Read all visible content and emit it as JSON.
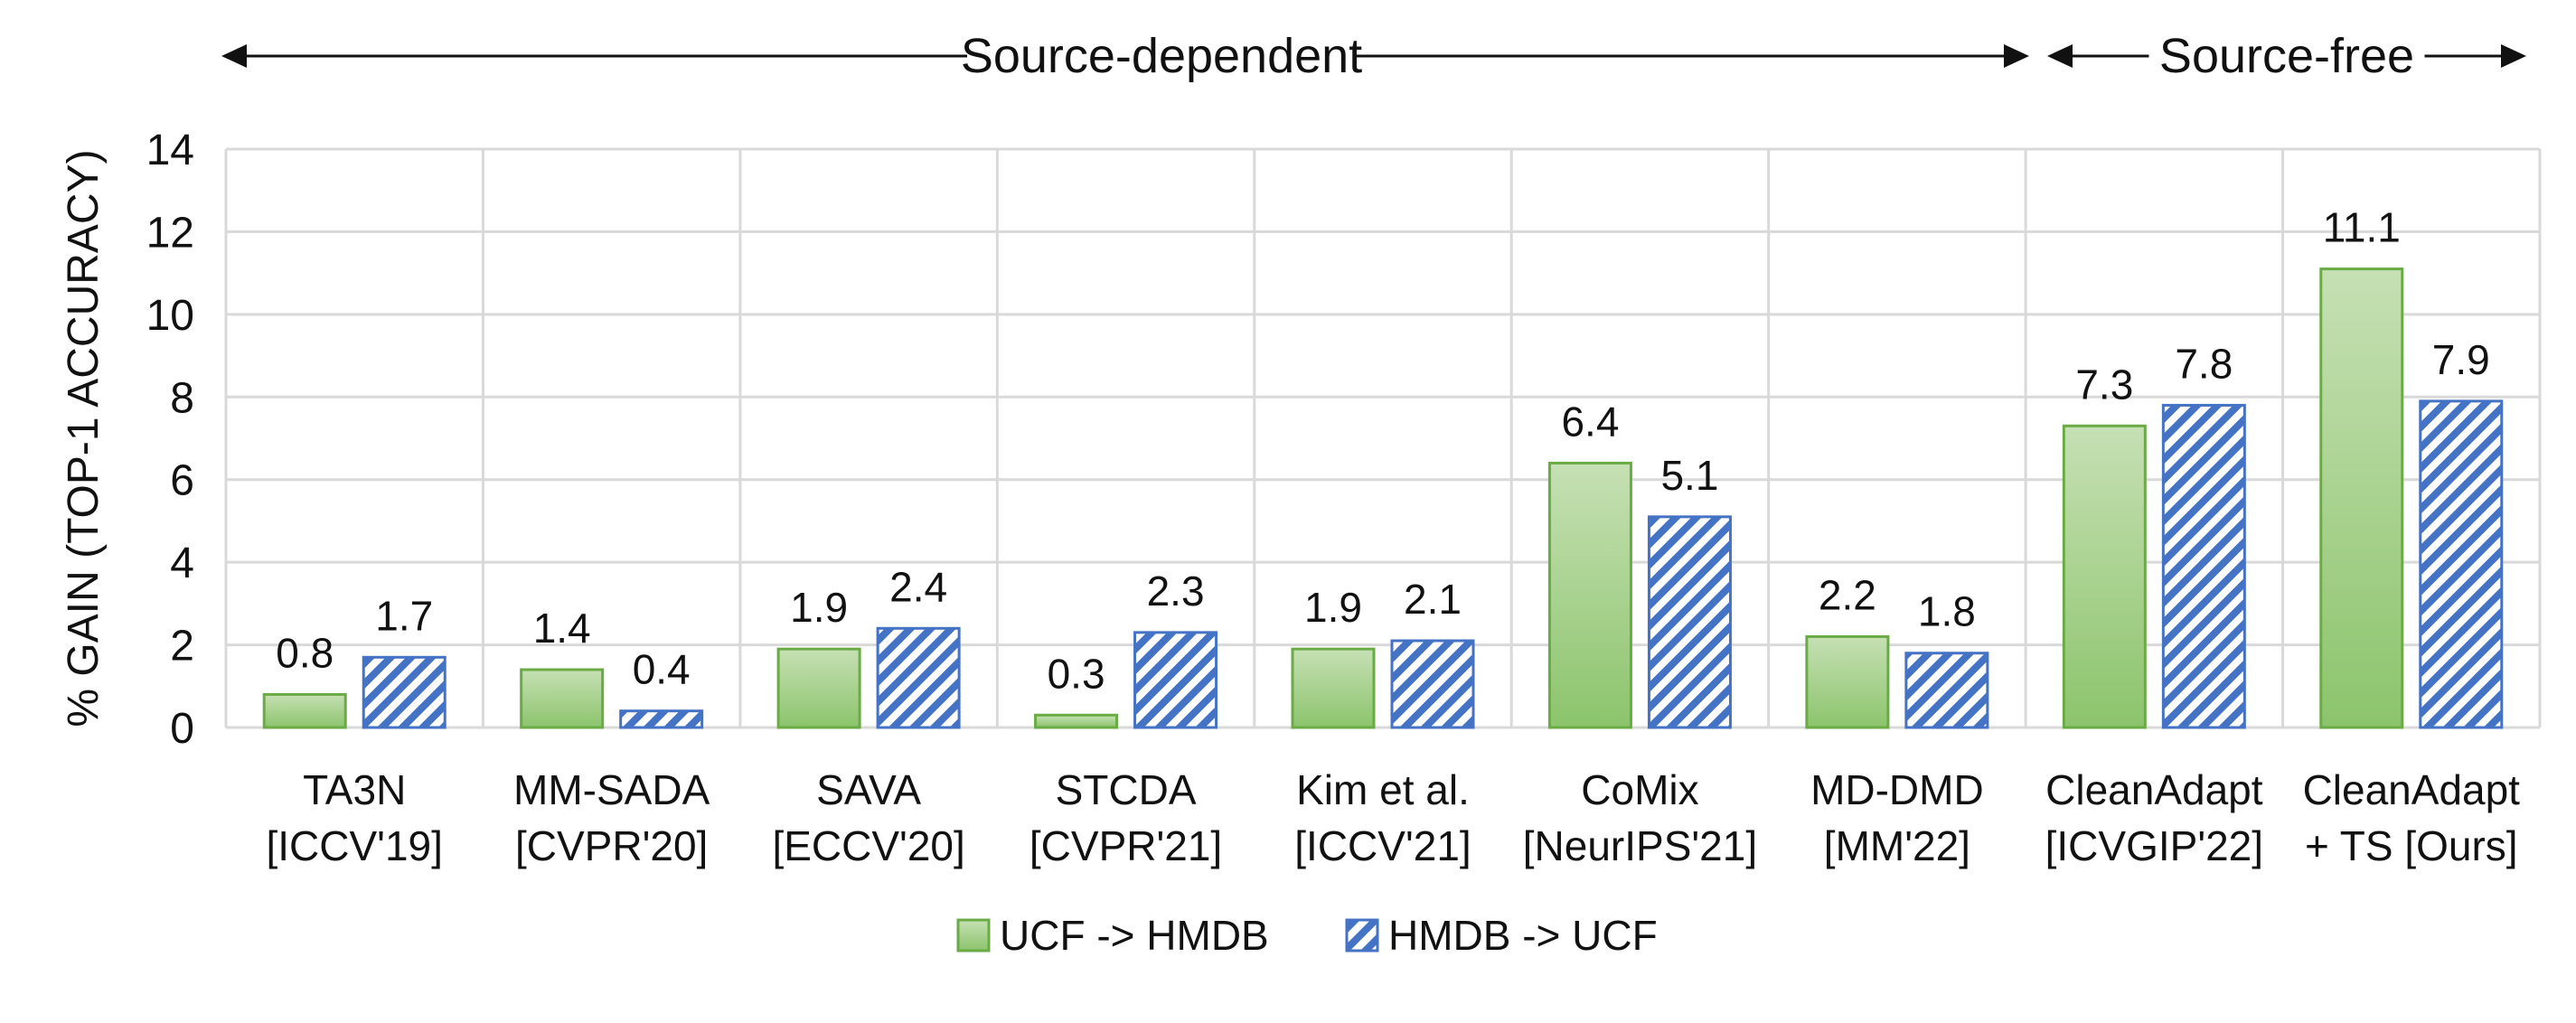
{
  "chart_data": {
    "type": "bar",
    "ylabel": "% GAIN (TOP-1 ACCURACY)",
    "ylim": [
      0,
      14
    ],
    "yticks": [
      0,
      2,
      4,
      6,
      8,
      10,
      12,
      14
    ],
    "grid": true,
    "legend_position": "bottom",
    "groups": [
      {
        "label": "Source-dependent",
        "categories": 7
      },
      {
        "label": "Source-free",
        "categories": 2
      }
    ],
    "categories": [
      [
        "TA3N",
        "[ICCV'19]"
      ],
      [
        "MM-SADA",
        "[CVPR'20]"
      ],
      [
        "SAVA",
        "[ECCV'20]"
      ],
      [
        "STCDA",
        "[CVPR'21]"
      ],
      [
        "Kim et al.",
        "[ICCV'21]"
      ],
      [
        "CoMix",
        "[NeurIPS'21]"
      ],
      [
        "MD-DMD",
        "[MM'22]"
      ],
      [
        "CleanAdapt",
        "[ICVGIP'22]"
      ],
      [
        "CleanAdapt",
        "+ TS [Ours]"
      ]
    ],
    "series": [
      {
        "name": "UCF -> HMDB",
        "values": [
          0.8,
          1.4,
          1.9,
          0.3,
          1.9,
          6.4,
          2.2,
          7.3,
          11.1
        ],
        "color": "#a8d08d",
        "stroke": "#6aab45",
        "pattern": "solid"
      },
      {
        "name": "HMDB -> UCF",
        "values": [
          1.7,
          0.4,
          2.4,
          2.3,
          2.1,
          5.1,
          1.8,
          7.8,
          7.9
        ],
        "color": "#4472c4",
        "stroke": "#4472c4",
        "pattern": "diagonal-stripes"
      }
    ]
  }
}
